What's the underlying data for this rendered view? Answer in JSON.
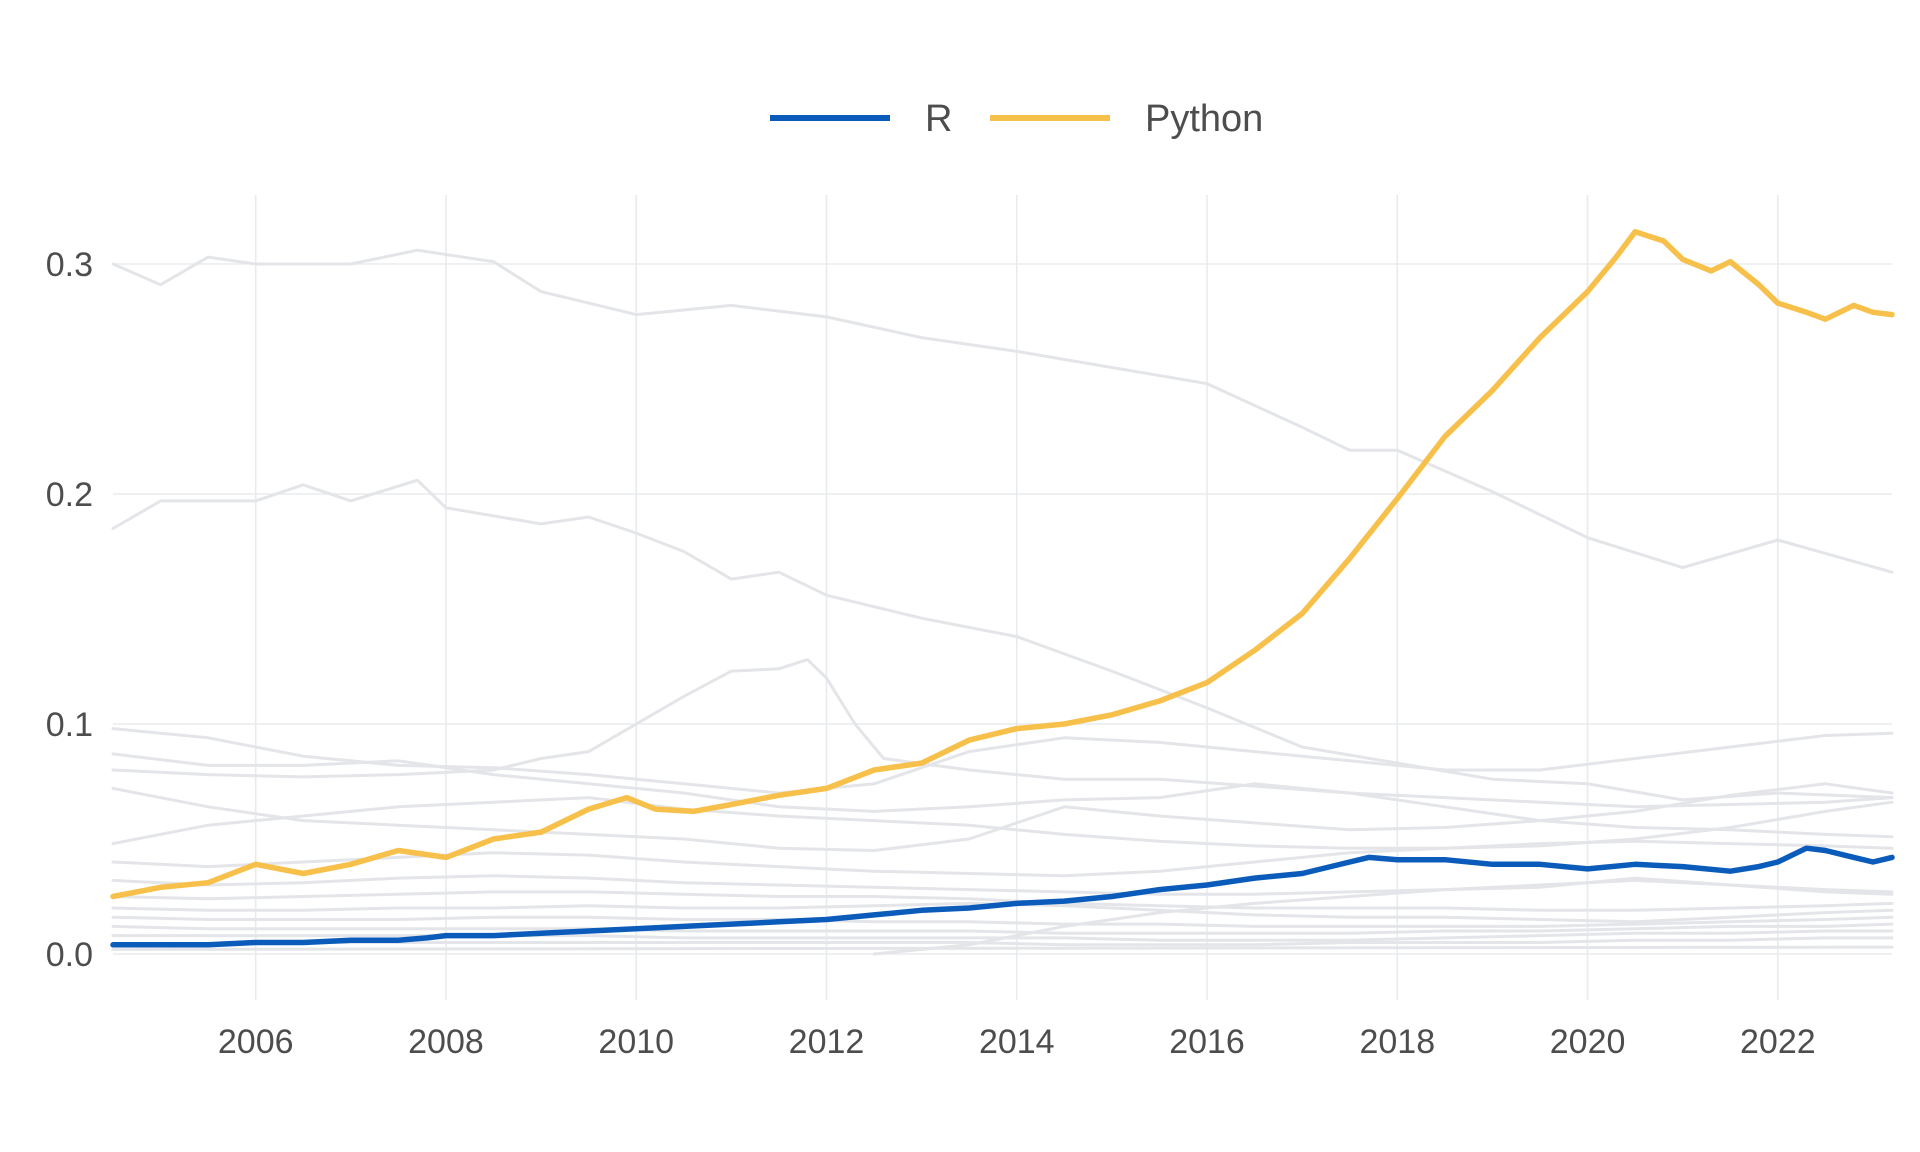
{
  "chart_data": {
    "type": "line",
    "title": "",
    "xlabel": "",
    "ylabel": "",
    "xlim": [
      2004.5,
      2023.2
    ],
    "ylim": [
      -0.02,
      0.33
    ],
    "x_ticks": [
      "2006",
      "2008",
      "2010",
      "2012",
      "2014",
      "2016",
      "2018",
      "2020",
      "2022"
    ],
    "y_ticks": [
      "0.0",
      "0.1",
      "0.2",
      "0.3"
    ],
    "grid": true,
    "legend_position": "top-center",
    "series": [
      {
        "name": "R",
        "color": "#0b5cba",
        "x": [
          2004.5,
          2005.0,
          2005.5,
          2006.0,
          2006.5,
          2007.0,
          2007.5,
          2007.8,
          2008.0,
          2008.5,
          2009.0,
          2009.5,
          2010.0,
          2010.5,
          2011.0,
          2011.5,
          2012.0,
          2012.5,
          2013.0,
          2013.5,
          2014.0,
          2014.5,
          2015.0,
          2015.5,
          2016.0,
          2016.5,
          2017.0,
          2017.5,
          2017.7,
          2018.0,
          2018.5,
          2019.0,
          2019.5,
          2020.0,
          2020.5,
          2021.0,
          2021.5,
          2021.8,
          2022.0,
          2022.3,
          2022.5,
          2022.8,
          2023.0,
          2023.2
        ],
        "values": [
          0.004,
          0.004,
          0.004,
          0.005,
          0.005,
          0.006,
          0.006,
          0.007,
          0.008,
          0.008,
          0.009,
          0.01,
          0.011,
          0.012,
          0.013,
          0.014,
          0.015,
          0.017,
          0.019,
          0.02,
          0.022,
          0.023,
          0.025,
          0.028,
          0.03,
          0.033,
          0.035,
          0.04,
          0.042,
          0.041,
          0.041,
          0.039,
          0.039,
          0.037,
          0.039,
          0.038,
          0.036,
          0.038,
          0.04,
          0.046,
          0.045,
          0.042,
          0.04,
          0.042
        ]
      },
      {
        "name": "Python",
        "color": "#f7c04a",
        "x": [
          2004.5,
          2005.0,
          2005.5,
          2006.0,
          2006.5,
          2007.0,
          2007.5,
          2008.0,
          2008.5,
          2009.0,
          2009.5,
          2009.9,
          2010.2,
          2010.6,
          2011.0,
          2011.5,
          2012.0,
          2012.5,
          2013.0,
          2013.5,
          2014.0,
          2014.5,
          2015.0,
          2015.5,
          2016.0,
          2016.5,
          2017.0,
          2017.5,
          2018.0,
          2018.5,
          2019.0,
          2019.5,
          2020.0,
          2020.3,
          2020.5,
          2020.8,
          2021.0,
          2021.3,
          2021.5,
          2021.8,
          2022.0,
          2022.3,
          2022.5,
          2022.8,
          2023.0,
          2023.2
        ],
        "values": [
          0.025,
          0.029,
          0.031,
          0.039,
          0.035,
          0.039,
          0.045,
          0.042,
          0.05,
          0.053,
          0.063,
          0.068,
          0.063,
          0.062,
          0.065,
          0.069,
          0.072,
          0.08,
          0.083,
          0.093,
          0.098,
          0.1,
          0.104,
          0.11,
          0.118,
          0.132,
          0.148,
          0.172,
          0.198,
          0.225,
          0.245,
          0.268,
          0.288,
          0.303,
          0.314,
          0.31,
          0.302,
          0.297,
          0.301,
          0.291,
          0.283,
          0.279,
          0.276,
          0.282,
          0.279,
          0.278
        ]
      }
    ],
    "background_series": [
      {
        "x": [
          2004.5,
          2005,
          2005.5,
          2006,
          2007,
          2007.7,
          2008.5,
          2009,
          2010,
          2011,
          2012,
          2013,
          2014,
          2015,
          2016,
          2017,
          2017.5,
          2018,
          2019,
          2020,
          2021,
          2022,
          2023.2
        ],
        "values": [
          0.3,
          0.291,
          0.303,
          0.3,
          0.3,
          0.306,
          0.301,
          0.288,
          0.278,
          0.282,
          0.277,
          0.268,
          0.262,
          0.255,
          0.248,
          0.229,
          0.219,
          0.219,
          0.201,
          0.181,
          0.168,
          0.18,
          0.166
        ]
      },
      {
        "x": [
          2004.5,
          2005,
          2006,
          2006.5,
          2007,
          2007.7,
          2008,
          2009,
          2009.5,
          2010,
          2010.5,
          2011,
          2011.5,
          2012,
          2013,
          2014,
          2015,
          2016,
          2017,
          2018,
          2019,
          2020,
          2021,
          2022,
          2023.2
        ],
        "values": [
          0.185,
          0.197,
          0.197,
          0.204,
          0.197,
          0.206,
          0.194,
          0.187,
          0.19,
          0.183,
          0.175,
          0.163,
          0.166,
          0.156,
          0.146,
          0.138,
          0.123,
          0.107,
          0.09,
          0.083,
          0.076,
          0.074,
          0.067,
          0.07,
          0.068
        ]
      },
      {
        "x": [
          2004.5,
          2005.5,
          2006.5,
          2007.5,
          2008.5,
          2009,
          2009.5,
          2010,
          2010.5,
          2011,
          2011.5,
          2011.8,
          2012,
          2012.3,
          2012.6,
          2013.5,
          2014.5,
          2015.5,
          2016.5,
          2017.5,
          2018.5,
          2019.5,
          2020.5,
          2021.5,
          2022.5,
          2023.2
        ],
        "values": [
          0.08,
          0.078,
          0.077,
          0.078,
          0.08,
          0.085,
          0.088,
          0.1,
          0.112,
          0.123,
          0.124,
          0.128,
          0.12,
          0.1,
          0.085,
          0.08,
          0.076,
          0.076,
          0.073,
          0.07,
          0.068,
          0.066,
          0.064,
          0.065,
          0.066,
          0.068
        ]
      },
      {
        "x": [
          2004.5,
          2005.5,
          2006.5,
          2007.5,
          2008.5,
          2009.5,
          2010.5,
          2011.5,
          2012.5,
          2013.5,
          2014.5,
          2015.5,
          2016.5,
          2017.5,
          2018.5,
          2019.5,
          2020.5,
          2021.5,
          2022.5,
          2023.2
        ],
        "values": [
          0.098,
          0.094,
          0.086,
          0.082,
          0.081,
          0.078,
          0.074,
          0.07,
          0.074,
          0.088,
          0.094,
          0.092,
          0.088,
          0.084,
          0.08,
          0.08,
          0.085,
          0.09,
          0.095,
          0.096
        ]
      },
      {
        "x": [
          2004.5,
          2005.5,
          2006.5,
          2007.5,
          2008.5,
          2009.5,
          2010.5,
          2011.5,
          2012.5,
          2013.5,
          2014.5,
          2015.5,
          2016.5,
          2017.5,
          2018.5,
          2019.5,
          2020.5,
          2021.5,
          2022.5,
          2023.2
        ],
        "values": [
          0.087,
          0.082,
          0.082,
          0.084,
          0.078,
          0.074,
          0.07,
          0.064,
          0.062,
          0.064,
          0.067,
          0.068,
          0.074,
          0.07,
          0.064,
          0.058,
          0.055,
          0.054,
          0.052,
          0.051
        ]
      },
      {
        "x": [
          2004.5,
          2005.5,
          2006.5,
          2007.5,
          2008.5,
          2009.5,
          2010.5,
          2011.5,
          2012.5,
          2013.5,
          2014.5,
          2015.5,
          2016.5,
          2017.5,
          2018.5,
          2019.5,
          2020.5,
          2021.5,
          2022.5,
          2023.2
        ],
        "values": [
          0.072,
          0.064,
          0.058,
          0.056,
          0.054,
          0.052,
          0.05,
          0.046,
          0.045,
          0.05,
          0.064,
          0.06,
          0.057,
          0.054,
          0.055,
          0.058,
          0.062,
          0.069,
          0.074,
          0.07
        ]
      },
      {
        "x": [
          2004.5,
          2005.5,
          2006.5,
          2007.5,
          2008.5,
          2009.5,
          2010.5,
          2011.5,
          2012.5,
          2013.5,
          2014.5,
          2015.5,
          2016.5,
          2017.5,
          2018.5,
          2019.5,
          2020.5,
          2021.5,
          2022.5,
          2023.2
        ],
        "values": [
          0.048,
          0.056,
          0.06,
          0.064,
          0.066,
          0.068,
          0.063,
          0.06,
          0.058,
          0.056,
          0.052,
          0.049,
          0.047,
          0.046,
          0.046,
          0.047,
          0.05,
          0.055,
          0.062,
          0.066
        ]
      },
      {
        "x": [
          2004.5,
          2005.5,
          2006.5,
          2007.5,
          2008.5,
          2009.5,
          2010.5,
          2011.5,
          2012.5,
          2013.5,
          2014.5,
          2015.5,
          2016.5,
          2017.5,
          2018.5,
          2019.5,
          2020.5,
          2021.5,
          2022.5,
          2023.2
        ],
        "values": [
          0.04,
          0.038,
          0.04,
          0.042,
          0.044,
          0.043,
          0.04,
          0.038,
          0.036,
          0.035,
          0.034,
          0.036,
          0.04,
          0.044,
          0.046,
          0.048,
          0.049,
          0.048,
          0.047,
          0.046
        ]
      },
      {
        "x": [
          2004.5,
          2005.5,
          2006.5,
          2007.5,
          2008.5,
          2009.5,
          2010.5,
          2011.5,
          2012.5,
          2013.5,
          2014.5,
          2015.5,
          2016.5,
          2017.5,
          2018.5,
          2019.5,
          2020.5,
          2021.5,
          2022.5,
          2023.2
        ],
        "values": [
          0.032,
          0.03,
          0.031,
          0.033,
          0.034,
          0.033,
          0.031,
          0.03,
          0.029,
          0.028,
          0.027,
          0.026,
          0.026,
          0.027,
          0.028,
          0.029,
          0.033,
          0.03,
          0.027,
          0.026
        ]
      },
      {
        "x": [
          2004.5,
          2005.5,
          2006.5,
          2007.5,
          2008.5,
          2009.5,
          2010.5,
          2011.5,
          2012.5,
          2013.5,
          2014.5,
          2015.5,
          2016.5,
          2017.5,
          2018.5,
          2019.5,
          2020.5,
          2021.5,
          2022.5,
          2023.2
        ],
        "values": [
          0.025,
          0.024,
          0.025,
          0.026,
          0.027,
          0.027,
          0.026,
          0.025,
          0.025,
          0.024,
          0.022,
          0.021,
          0.02,
          0.02,
          0.02,
          0.019,
          0.019,
          0.02,
          0.021,
          0.022
        ]
      },
      {
        "x": [
          2004.5,
          2005.5,
          2006.5,
          2007.5,
          2008.5,
          2009.5,
          2010.5,
          2011.5,
          2012.5,
          2013.5,
          2014.5,
          2015.5,
          2016.5,
          2017.5,
          2018.5,
          2019.5,
          2020.5,
          2021.5,
          2022.5,
          2023.2
        ],
        "values": [
          0.02,
          0.019,
          0.019,
          0.02,
          0.02,
          0.021,
          0.02,
          0.02,
          0.021,
          0.022,
          0.021,
          0.019,
          0.017,
          0.016,
          0.016,
          0.015,
          0.014,
          0.016,
          0.018,
          0.019
        ]
      },
      {
        "x": [
          2004.5,
          2005.5,
          2006.5,
          2007.5,
          2008.5,
          2009.5,
          2010.5,
          2011.5,
          2012.5,
          2013.5,
          2014.5,
          2015.5,
          2016.5,
          2017.5,
          2018.5,
          2019.5,
          2020.5,
          2021.5,
          2022.5,
          2023.2
        ],
        "values": [
          0.016,
          0.015,
          0.015,
          0.015,
          0.016,
          0.016,
          0.015,
          0.015,
          0.014,
          0.014,
          0.013,
          0.013,
          0.012,
          0.012,
          0.012,
          0.012,
          0.013,
          0.014,
          0.015,
          0.016
        ]
      },
      {
        "x": [
          2004.5,
          2005.5,
          2006.5,
          2007.5,
          2008.5,
          2009.5,
          2010.5,
          2011.5,
          2012.5,
          2013.5,
          2014.5,
          2015.5,
          2016.5,
          2017.5,
          2018.5,
          2019.5,
          2020.5,
          2021.5,
          2022.5,
          2023.2
        ],
        "values": [
          0.012,
          0.011,
          0.011,
          0.011,
          0.011,
          0.011,
          0.01,
          0.01,
          0.01,
          0.01,
          0.009,
          0.009,
          0.009,
          0.009,
          0.01,
          0.01,
          0.011,
          0.012,
          0.012,
          0.013
        ]
      },
      {
        "x": [
          2004.5,
          2005.5,
          2006.5,
          2007.5,
          2008.5,
          2009.5,
          2010.5,
          2011.5,
          2012.5,
          2013.5,
          2014.5,
          2015.5,
          2016.5,
          2017.5,
          2018.5,
          2019.5,
          2020.5,
          2021.5,
          2022.5,
          2023.2
        ],
        "values": [
          0.008,
          0.008,
          0.008,
          0.008,
          0.008,
          0.008,
          0.007,
          0.007,
          0.007,
          0.007,
          0.007,
          0.006,
          0.006,
          0.006,
          0.007,
          0.008,
          0.009,
          0.009,
          0.01,
          0.01
        ]
      },
      {
        "x": [
          2004.5,
          2005.5,
          2006.5,
          2007.5,
          2008.5,
          2009.5,
          2010.5,
          2011.5,
          2012.5,
          2013.5,
          2014.5,
          2015.5,
          2016.5,
          2017.5,
          2018.5,
          2019.5,
          2020.5,
          2021.5,
          2022.5,
          2023.2
        ],
        "values": [
          0.004,
          0.004,
          0.005,
          0.005,
          0.005,
          0.005,
          0.005,
          0.005,
          0.005,
          0.005,
          0.004,
          0.004,
          0.004,
          0.005,
          0.005,
          0.005,
          0.006,
          0.006,
          0.007,
          0.007
        ]
      },
      {
        "x": [
          2004.5,
          2023.2
        ],
        "values": [
          0.002,
          0.003
        ]
      },
      {
        "x": [
          2012.5,
          2013.5,
          2014.5,
          2015.5,
          2016.5,
          2017.5,
          2018.5,
          2019.5,
          2020.5,
          2021.5,
          2022.5,
          2023.2
        ],
        "values": [
          0.0,
          0.004,
          0.012,
          0.018,
          0.022,
          0.025,
          0.028,
          0.03,
          0.032,
          0.03,
          0.028,
          0.027
        ]
      }
    ]
  }
}
